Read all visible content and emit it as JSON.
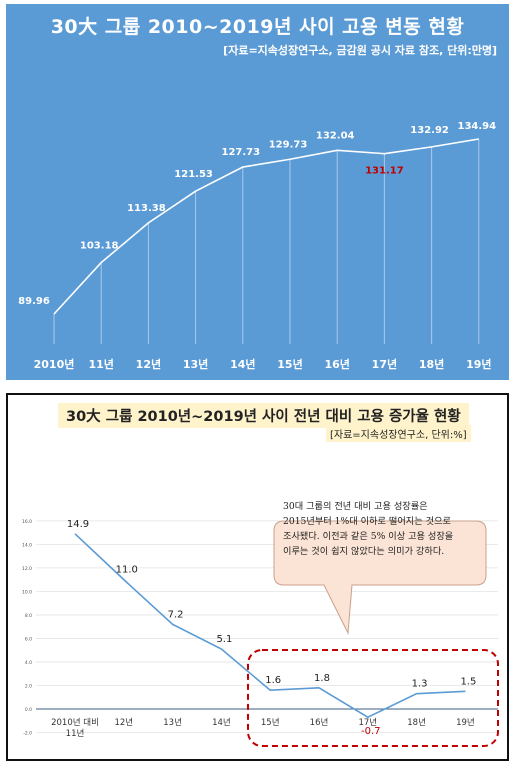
{
  "top_chart": {
    "title": "30大 그룹 2010~2019년 사이 고용 변동 현황",
    "source": "[자료=지속성장연구소, 금감원 공시 자료 참조, 단위:만명]",
    "background_color": "#5b9bd5",
    "highlight_color": "#c00000"
  },
  "bottom_chart": {
    "title": "30大 그룹 2010년~2019년 사이 전년 대비 고용 증가율 현황",
    "source": "[자료=지속성장연구소, 단위:%]",
    "callout_lines": [
      "30대 그룹의 전년 대비 고용 성장률은",
      "2015년부터 1%대 이하로 떨어지는 것으로",
      "조사됐다. 이전과 같은 5% 이상 고용 성장을",
      "이루는 것이 쉽지 않았다는 의미가 강하다."
    ],
    "line_color": "#5b9bd5",
    "negative_color": "#c00000",
    "highlight_box_color": "#c00000"
  },
  "chart_data": [
    {
      "type": "line",
      "categories": [
        "2010년",
        "11년",
        "12년",
        "13년",
        "14년",
        "15년",
        "16년",
        "17년",
        "18년",
        "19년"
      ],
      "values": [
        89.96,
        103.18,
        113.38,
        121.53,
        127.73,
        129.73,
        132.04,
        131.17,
        132.92,
        134.94
      ],
      "data_labels": [
        "89.96",
        "103.18",
        "113.38",
        "121.53",
        "127.73",
        "129.73",
        "132.04",
        "131.17",
        "132.92",
        "134.94"
      ],
      "title": "30大 그룹 2010~2019년 사이 고용 변동 현황",
      "xlabel": "",
      "ylabel": "",
      "ylim": [
        80,
        140
      ],
      "grid": "vertical drop lines",
      "legend": "none"
    },
    {
      "type": "line",
      "categories": [
        "2010년 대비 11년",
        "12년",
        "13년",
        "14년",
        "15년",
        "16년",
        "17년",
        "18년",
        "19년"
      ],
      "category_lines": [
        [
          "2010년 대비",
          "11년"
        ],
        [
          "12년"
        ],
        [
          "13년"
        ],
        [
          "14년"
        ],
        [
          "15년"
        ],
        [
          "16년"
        ],
        [
          "17년"
        ],
        [
          "18년"
        ],
        [
          "19년"
        ]
      ],
      "values": [
        14.9,
        11.0,
        7.2,
        5.1,
        1.6,
        1.8,
        -0.7,
        1.3,
        1.5
      ],
      "data_labels": [
        "14.9",
        "11.0",
        "7.2",
        "5.1",
        "1.6",
        "1.8",
        "-0.7",
        "1.3",
        "1.5"
      ],
      "title": "30大 그룹 2010년~2019년 사이 전년 대비 고용 증가율 현황",
      "xlabel": "",
      "ylabel": "",
      "ylim": [
        -2.5,
        16
      ],
      "yticks": [
        "16.0",
        "14.0",
        "12.0",
        "10.0",
        "8.0",
        "6.0",
        "4.0",
        "2.0",
        "0.0",
        "-2.0"
      ],
      "grid": "horizontal",
      "legend": "none"
    }
  ]
}
